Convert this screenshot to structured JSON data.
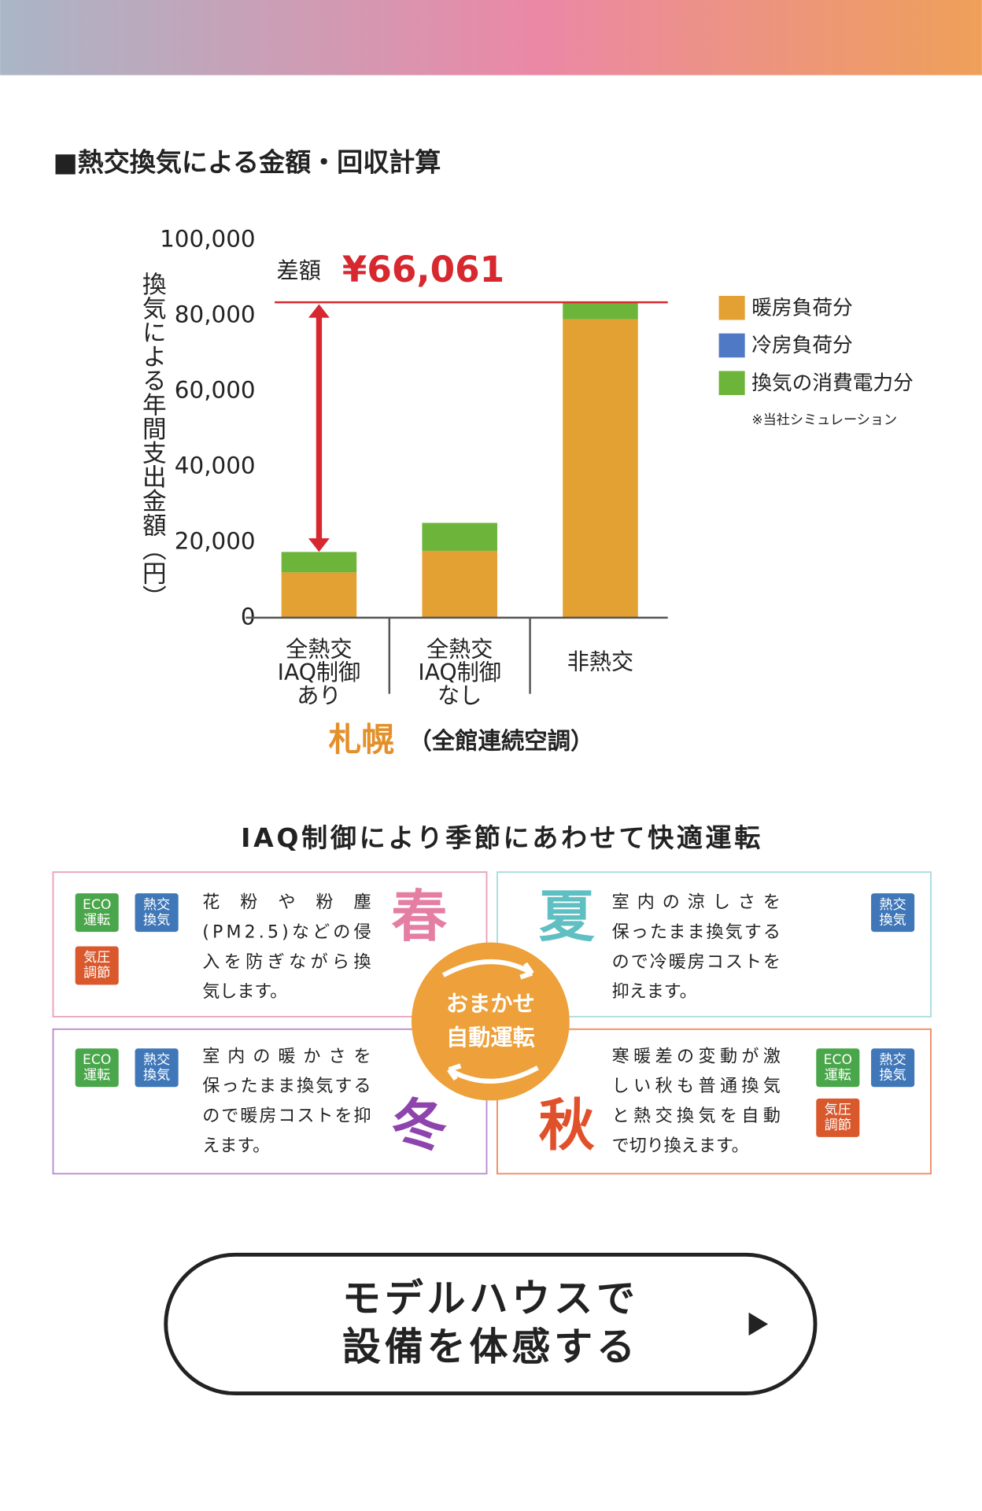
{
  "section_title": "■熱交換気による金額・回収計算",
  "chart_data": {
    "type": "bar",
    "stacked": true,
    "categories": [
      "全熱交\nIAQ制御\nあり",
      "全熱交\nIAQ制御\nなし",
      "非熱交"
    ],
    "series": [
      {
        "name": "暖房負荷分",
        "color": "#e3a033",
        "values": [
          12000,
          17700,
          79000
        ]
      },
      {
        "name": "冷房負荷分",
        "color": "#4f79c4",
        "values": [
          0,
          0,
          0
        ]
      },
      {
        "name": "換気の消費電力分",
        "color": "#6db43a",
        "values": [
          5400,
          7400,
          4500
        ]
      }
    ],
    "ylim": [
      0,
      100000
    ],
    "yticks": [
      0,
      {
        "value": 20000,
        "label": "20,000"
      },
      {
        "value": 40000,
        "label": "40,000"
      },
      {
        "value": 60000,
        "label": "60,000"
      },
      {
        "value": 80000,
        "label": "80,000"
      },
      {
        "value": 100000,
        "label": "100,000"
      }
    ],
    "ylabel": "換気による年間支出金額（円）",
    "xlabel": "札幌",
    "xlabel_note": "（全館連続空調）",
    "annotation": {
      "label": "差額",
      "value": 66061,
      "value_label": "¥66,061"
    },
    "note": "※当社シミュレーション"
  },
  "seasons": {
    "title": "IAQ制御により季節にあわせて快適運転",
    "center": [
      "おまかせ",
      "自動運転"
    ],
    "cards": [
      {
        "season": "春",
        "lines": [
          "花粉や粉塵",
          "(PM2.5)などの侵",
          "入を防ぎながら換",
          "気します。"
        ],
        "badges": [
          [
            "ECO",
            "運転"
          ],
          [
            "熱交",
            "換気"
          ],
          [
            "気圧",
            "調節"
          ]
        ]
      },
      {
        "season": "夏",
        "lines": [
          "室内の涼しさを",
          "保ったまま換気する",
          "ので冷暖房コストを",
          "抑えます。"
        ],
        "badges": [
          [
            "熱交",
            "換気"
          ]
        ]
      },
      {
        "season": "冬",
        "lines": [
          "室内の暖かさを",
          "保ったまま換気する",
          "ので暖房コストを抑",
          "えます。"
        ],
        "badges": [
          [
            "ECO",
            "運転"
          ],
          [
            "熱交",
            "換気"
          ]
        ]
      },
      {
        "season": "秋",
        "lines": [
          "寒暖差の変動が激",
          "しい秋も普通換気",
          "と熱交換気を自動",
          "で切り換えます。"
        ],
        "badges": [
          [
            "ECO",
            "運転"
          ],
          [
            "熱交",
            "換気"
          ],
          [
            "気圧",
            "調節"
          ]
        ]
      }
    ]
  },
  "button": {
    "lines": [
      "モデルハウスで",
      "設備を体感する"
    ]
  }
}
